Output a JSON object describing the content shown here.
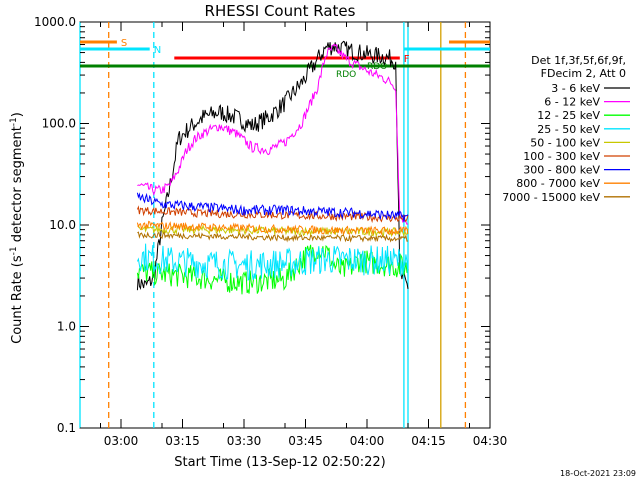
{
  "chart_data": {
    "type": "line",
    "title": "RHESSI Count Rates",
    "xlabel": "Start Time (13-Sep-12 02:50:22)",
    "ylabel_parts": [
      "Count Rate (s",
      "-1",
      " detector segment",
      "-1",
      ")"
    ],
    "y_scale": "log",
    "ylim": [
      0.1,
      1000
    ],
    "y_ticks": [
      {
        "value": 0.1,
        "label": "0.1"
      },
      {
        "value": 1,
        "label": "1.0"
      },
      {
        "value": 10,
        "label": "10.0"
      },
      {
        "value": 100,
        "label": "100.0"
      },
      {
        "value": 1000,
        "label": "1000.0"
      }
    ],
    "xlim": [
      "02:50",
      "04:30"
    ],
    "x_ticks": [
      "03:00",
      "03:15",
      "03:30",
      "03:45",
      "04:00",
      "04:15",
      "04:30"
    ],
    "legend_header": [
      "Det 1f,3f,5f,6f,9f,",
      "FDecim 2, Att 0"
    ],
    "legend_position": "right",
    "timestamp": "18-Oct-2021 23:09",
    "flags": [
      {
        "label": "S",
        "color": "#ff8000",
        "segments": [
          [
            "02:50",
            "02:59"
          ],
          [
            "04:20",
            "04:30"
          ]
        ]
      },
      {
        "label": "N",
        "color": "#00e5ff",
        "segments": [
          [
            "02:50",
            "03:07"
          ],
          [
            "04:09",
            "04:30"
          ]
        ]
      },
      {
        "label": "F",
        "color": "#ff0000",
        "segments": [
          [
            "03:13",
            "04:08"
          ]
        ]
      },
      {
        "label": "",
        "color": "#008000",
        "segments": [
          [
            "02:50",
            "04:30"
          ]
        ]
      }
    ],
    "annotations": [
      "RDO",
      "RDO"
    ],
    "vlines": [
      {
        "time": "02:50",
        "color": "#00e5ff",
        "dash": false
      },
      {
        "time": "02:57",
        "color": "#ff8000",
        "dash": true
      },
      {
        "time": "03:08",
        "color": "#00e5ff",
        "dash": true
      },
      {
        "time": "04:09",
        "color": "#00e5ff",
        "dash": false
      },
      {
        "time": "04:10",
        "color": "#00e5ff",
        "dash": false
      },
      {
        "time": "04:18",
        "color": "#d4a000",
        "dash": false
      },
      {
        "time": "04:24",
        "color": "#ff8000",
        "dash": true
      }
    ],
    "series": [
      {
        "name": "3 - 6 keV",
        "color": "#000000",
        "x": [
          "03:04",
          "03:06",
          "03:08",
          "03:10",
          "03:12",
          "03:14",
          "03:16",
          "03:18",
          "03:20",
          "03:24",
          "03:28",
          "03:32",
          "03:36",
          "03:40",
          "03:44",
          "03:48",
          "03:50",
          "03:52",
          "03:55",
          "03:58",
          "04:01",
          "04:04",
          "04:06",
          "04:07",
          "04:08",
          "04:10"
        ],
        "y": [
          2.8,
          2.5,
          3,
          10,
          25,
          70,
          85,
          100,
          115,
          130,
          115,
          95,
          115,
          160,
          250,
          430,
          560,
          580,
          530,
          500,
          470,
          460,
          430,
          420,
          3.2,
          2.5
        ]
      },
      {
        "name": "6 - 12 keV",
        "color": "#ff00ff",
        "x": [
          "03:04",
          "03:08",
          "03:10",
          "03:12",
          "03:14",
          "03:16",
          "03:18",
          "03:20",
          "03:24",
          "03:28",
          "03:32",
          "03:36",
          "03:40",
          "03:44",
          "03:48",
          "03:50",
          "03:52",
          "03:55",
          "04:00",
          "04:04",
          "04:06",
          "04:07",
          "04:08",
          "04:10"
        ],
        "y": [
          25,
          22,
          22,
          25,
          35,
          55,
          70,
          80,
          95,
          80,
          58,
          55,
          65,
          100,
          230,
          480,
          560,
          430,
          330,
          280,
          250,
          230,
          12,
          11
        ]
      },
      {
        "name": "12 - 25 keV",
        "color": "#00ff00",
        "x": [
          "03:04",
          "03:10",
          "03:20",
          "03:30",
          "03:40",
          "03:44",
          "03:48",
          "03:50",
          "03:52",
          "03:54",
          "03:56",
          "03:58",
          "04:02",
          "04:06",
          "04:10"
        ],
        "y": [
          3.5,
          3.3,
          3.0,
          2.7,
          2.9,
          4.5,
          6.0,
          5.5,
          4.0,
          3.5,
          3.8,
          4.5,
          4.2,
          4.0,
          3.8
        ]
      },
      {
        "name": "25 - 50 keV",
        "color": "#00e5ff",
        "x": [
          "03:04",
          "03:10",
          "03:20",
          "03:30",
          "03:40",
          "03:50",
          "04:00",
          "04:10"
        ],
        "y": [
          5,
          4.5,
          4.2,
          4.0,
          4.2,
          4.6,
          4.5,
          4.4
        ]
      },
      {
        "name": "50 - 100 keV",
        "color": "#c8c800",
        "x": [
          "03:04",
          "03:20",
          "03:40",
          "04:00",
          "04:10"
        ],
        "y": [
          9,
          9,
          8.7,
          8.6,
          8.5
        ]
      },
      {
        "name": "100 - 300 keV",
        "color": "#d04000",
        "x": [
          "03:04",
          "03:20",
          "03:40",
          "04:00",
          "04:10"
        ],
        "y": [
          14,
          13,
          12.5,
          12,
          11.5
        ]
      },
      {
        "name": "300 - 800 keV",
        "color": "#0000ff",
        "x": [
          "03:04",
          "03:10",
          "03:20",
          "03:30",
          "03:40",
          "03:50",
          "04:00",
          "04:10"
        ],
        "y": [
          19,
          16,
          15,
          14,
          14,
          13.5,
          13,
          12
        ]
      },
      {
        "name": "800 - 7000 keV",
        "color": "#ff8000",
        "x": [
          "03:04",
          "03:10",
          "03:20",
          "03:30",
          "03:40",
          "03:50",
          "04:00",
          "04:10"
        ],
        "y": [
          10,
          9.8,
          9.6,
          9.3,
          9.1,
          8.9,
          8.8,
          8.7
        ]
      },
      {
        "name": "7000 - 15000 keV",
        "color": "#b07000",
        "x": [
          "03:04",
          "03:20",
          "03:40",
          "04:00",
          "04:10"
        ],
        "y": [
          8,
          7.8,
          7.5,
          7.4,
          7.3
        ]
      }
    ]
  }
}
